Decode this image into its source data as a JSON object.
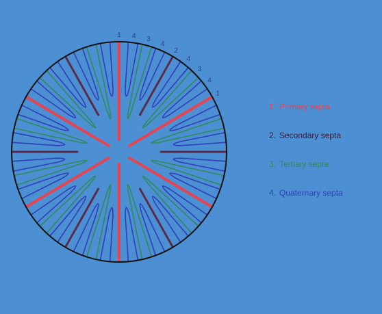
{
  "diagram": {
    "rim_labels": [
      "1",
      "4",
      "3",
      "4",
      "2",
      "4",
      "3",
      "4",
      "1"
    ],
    "legend": [
      {
        "number": "1.",
        "label": "Primary septa"
      },
      {
        "number": "2.",
        "label": "Secondary septa"
      },
      {
        "number": "3.",
        "label": "Tertiary septa"
      },
      {
        "number": "4.",
        "label": "Quaternary septa"
      }
    ]
  }
}
